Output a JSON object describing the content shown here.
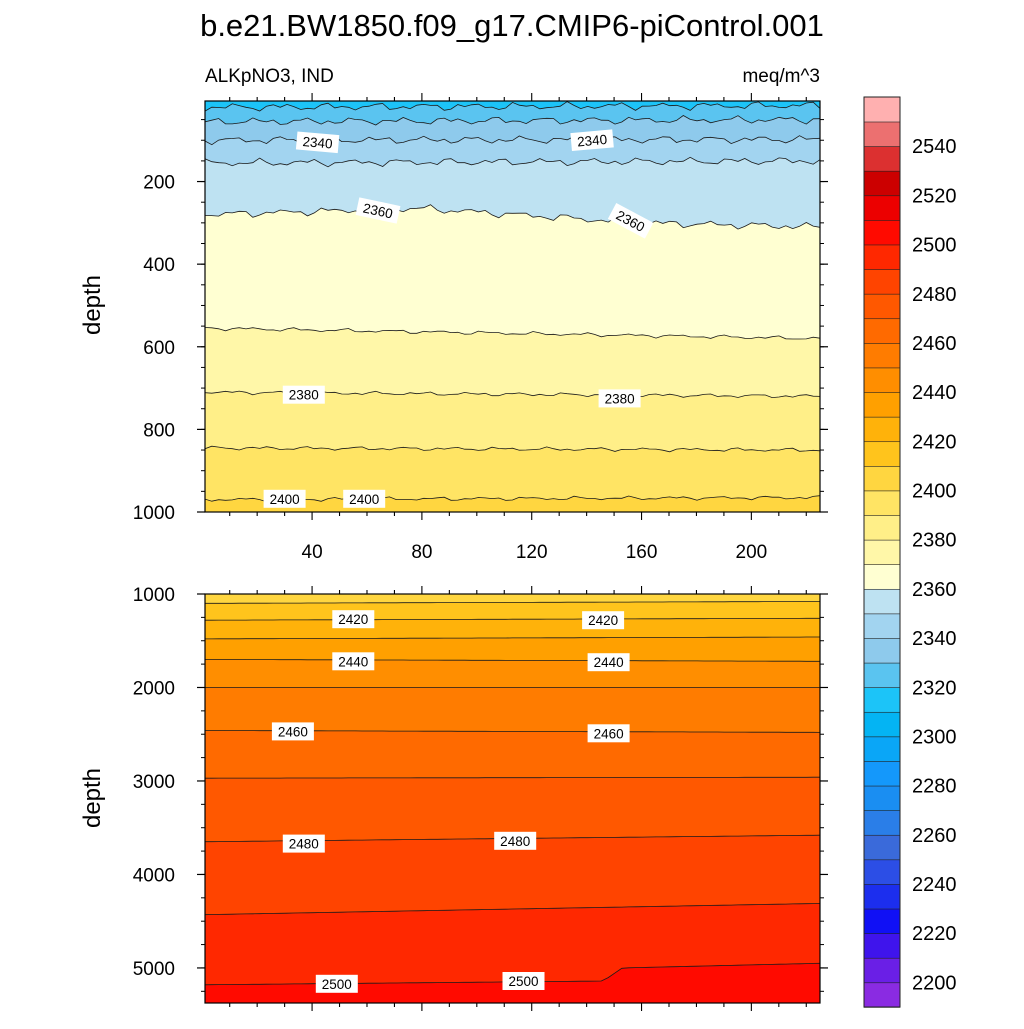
{
  "chart_data": {
    "type": "contour",
    "title": "b.e21.BW1850.f09_g17.CMIP6-piControl.001",
    "variable_label": "ALKpNO3, IND",
    "units_label": "meq/m^3",
    "colorbar": {
      "levels": [
        2190,
        2200,
        2210,
        2220,
        2230,
        2240,
        2250,
        2260,
        2270,
        2280,
        2290,
        2300,
        2310,
        2320,
        2330,
        2340,
        2350,
        2360,
        2370,
        2380,
        2390,
        2400,
        2410,
        2420,
        2430,
        2440,
        2450,
        2460,
        2470,
        2480,
        2490,
        2500,
        2510,
        2520,
        2530,
        2540,
        2550,
        2560
      ],
      "colors": [
        "#8a2be2",
        "#6a1fe6",
        "#3f14ec",
        "#1010f5",
        "#1c2eee",
        "#2c4ee6",
        "#3a6ada",
        "#2a7ee8",
        "#1a8ef2",
        "#1498fb",
        "#0aa6f7",
        "#04b4f3",
        "#1cc4f8",
        "#5ac4f0",
        "#8ecaec",
        "#a2d4f0",
        "#bee2f2",
        "#ffffd2",
        "#fff7a8",
        "#ffef88",
        "#ffe464",
        "#ffd640",
        "#ffc41c",
        "#ffb20a",
        "#ffa000",
        "#ff8e00",
        "#ff7c00",
        "#ff6a00",
        "#ff5800",
        "#ff4400",
        "#ff2800",
        "#ff0a00",
        "#ec0000",
        "#cc0000",
        "#dc3030",
        "#ec7070",
        "#ffb0b0"
      ],
      "tick_labels": [
        "2200",
        "2220",
        "2240",
        "2260",
        "2280",
        "2300",
        "2320",
        "2340",
        "2360",
        "2380",
        "2400",
        "2420",
        "2440",
        "2460",
        "2480",
        "2500",
        "2520",
        "2540"
      ]
    },
    "panels": [
      {
        "name": "upper",
        "ylabel": "depth",
        "xlim": [
          1,
          225
        ],
        "ylim": [
          1000,
          5
        ],
        "x_ticks": [
          40,
          80,
          120,
          160,
          200
        ],
        "x_tick_labels": [
          "40",
          "80",
          "120",
          "160",
          "200"
        ],
        "y_ticks": [
          200,
          400,
          600,
          800,
          1000
        ],
        "y_tick_labels": [
          "200",
          "400",
          "600",
          "800",
          "1000"
        ],
        "contours": [
          {
            "level": 2320,
            "x": [
              1,
              225
            ],
            "depth": [
              20,
              16
            ]
          },
          {
            "level": 2330,
            "x": [
              1,
              225
            ],
            "depth": [
              55,
              50
            ]
          },
          {
            "level": 2340,
            "x": [
              1,
              225
            ],
            "depth": [
              100,
              98
            ]
          },
          {
            "level": 2350,
            "x": [
              1,
              225
            ],
            "depth": [
              155,
              150
            ]
          },
          {
            "level": 2360,
            "x": [
              1,
              80,
              160,
              225
            ],
            "depth": [
              280,
              265,
              300,
              310
            ]
          },
          {
            "level": 2370,
            "x": [
              1,
              225
            ],
            "depth": [
              555,
              580
            ]
          },
          {
            "level": 2380,
            "x": [
              1,
              225
            ],
            "depth": [
              710,
              720
            ]
          },
          {
            "level": 2390,
            "x": [
              1,
              225
            ],
            "depth": [
              845,
              850
            ]
          },
          {
            "level": 2400,
            "x": [
              1,
              225
            ],
            "depth": [
              970,
              965
            ]
          }
        ],
        "contour_labels": [
          {
            "text": "2340",
            "x": 42,
            "depth": 105
          },
          {
            "text": "2340",
            "x": 142,
            "depth": 100
          },
          {
            "text": "2360",
            "x": 64,
            "depth": 270
          },
          {
            "text": "2360",
            "x": 156,
            "depth": 295
          },
          {
            "text": "2380",
            "x": 37,
            "depth": 716
          },
          {
            "text": "2380",
            "x": 152,
            "depth": 725
          },
          {
            "text": "2400",
            "x": 30,
            "depth": 968
          },
          {
            "text": "2400",
            "x": 59,
            "depth": 968
          }
        ]
      },
      {
        "name": "lower",
        "ylabel": "depth",
        "xlim": [
          1,
          225
        ],
        "ylim": [
          5375,
          1000
        ],
        "y_ticks": [
          1000,
          2000,
          3000,
          4000,
          5000
        ],
        "y_tick_labels": [
          "1000",
          "2000",
          "3000",
          "4000",
          "5000"
        ],
        "contours": [
          {
            "level": 2410,
            "x": [
              1,
              225
            ],
            "depth": [
              1100,
              1080
            ]
          },
          {
            "level": 2420,
            "x": [
              1,
              225
            ],
            "depth": [
              1280,
              1260
            ]
          },
          {
            "level": 2430,
            "x": [
              1,
              225
            ],
            "depth": [
              1480,
              1460
            ]
          },
          {
            "level": 2440,
            "x": [
              1,
              225
            ],
            "depth": [
              1700,
              1720
            ]
          },
          {
            "level": 2450,
            "x": [
              1,
              225
            ],
            "depth": [
              2000,
              2000
            ]
          },
          {
            "level": 2460,
            "x": [
              1,
              225
            ],
            "depth": [
              2460,
              2480
            ]
          },
          {
            "level": 2470,
            "x": [
              1,
              225
            ],
            "depth": [
              2970,
              2960
            ]
          },
          {
            "level": 2480,
            "x": [
              1,
              225
            ],
            "depth": [
              3650,
              3580
            ]
          },
          {
            "level": 2490,
            "x": [
              1,
              225
            ],
            "depth": [
              4430,
              4310
            ]
          },
          {
            "level": 2500,
            "x": [
              1,
              146,
              153,
              225
            ],
            "depth": [
              5180,
              5140,
              5000,
              4950
            ]
          }
        ],
        "contour_labels": [
          {
            "text": "2420",
            "x": 55,
            "depth": 1270
          },
          {
            "text": "2420",
            "x": 146,
            "depth": 1280
          },
          {
            "text": "2440",
            "x": 55,
            "depth": 1720
          },
          {
            "text": "2440",
            "x": 148,
            "depth": 1730
          },
          {
            "text": "2460",
            "x": 33,
            "depth": 2470
          },
          {
            "text": "2460",
            "x": 148,
            "depth": 2490
          },
          {
            "text": "2480",
            "x": 37,
            "depth": 3670
          },
          {
            "text": "2480",
            "x": 114,
            "depth": 3640
          },
          {
            "text": "2500",
            "x": 49,
            "depth": 5170
          },
          {
            "text": "2500",
            "x": 117,
            "depth": 5140
          }
        ]
      }
    ]
  }
}
